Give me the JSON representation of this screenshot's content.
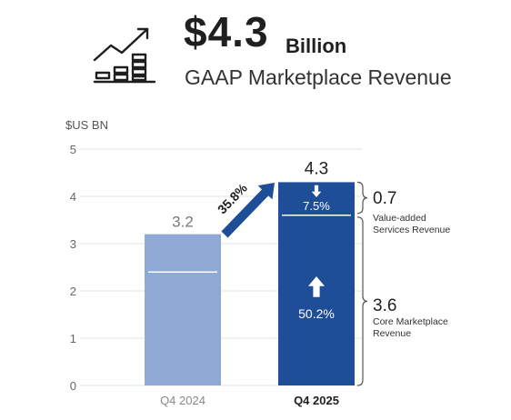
{
  "headline": {
    "value": "$4.3",
    "unit": "Billion",
    "subtitle": "GAAP Marketplace Revenue",
    "icon": "rising-bar-chart-arrow-icon"
  },
  "chart_data": {
    "type": "bar",
    "ylabel": "$US BN",
    "ylim": [
      0,
      5
    ],
    "yticks": [
      "0",
      "1",
      "2",
      "3",
      "4",
      "5"
    ],
    "grid": true,
    "categories": [
      "Q4 2024",
      "Q4 2025"
    ],
    "values": [
      3.2,
      4.3
    ],
    "value_labels": [
      "3.2",
      "4.3"
    ],
    "segments": [
      {
        "category": "Q4 2024",
        "parts": [
          {
            "value": 2.4
          },
          {
            "value": 0.8
          }
        ]
      },
      {
        "category": "Q4 2025",
        "parts": [
          {
            "value": 3.6,
            "label": "3.6",
            "description": "Core Marketplace Revenue",
            "growth": "50.2%",
            "direction": "up"
          },
          {
            "value": 0.7,
            "label": "0.7",
            "description": "Value-added Services Revenue",
            "growth": "7.5%",
            "direction": "down"
          }
        ]
      }
    ],
    "growth_annotation": "35.8%",
    "colors": {
      "prior_bar": "#8ea9d3",
      "current_bar": "#1f4e99",
      "arrow": "#1f4e99",
      "grid": "#e3e3e3",
      "axis_text": "#666666"
    }
  }
}
